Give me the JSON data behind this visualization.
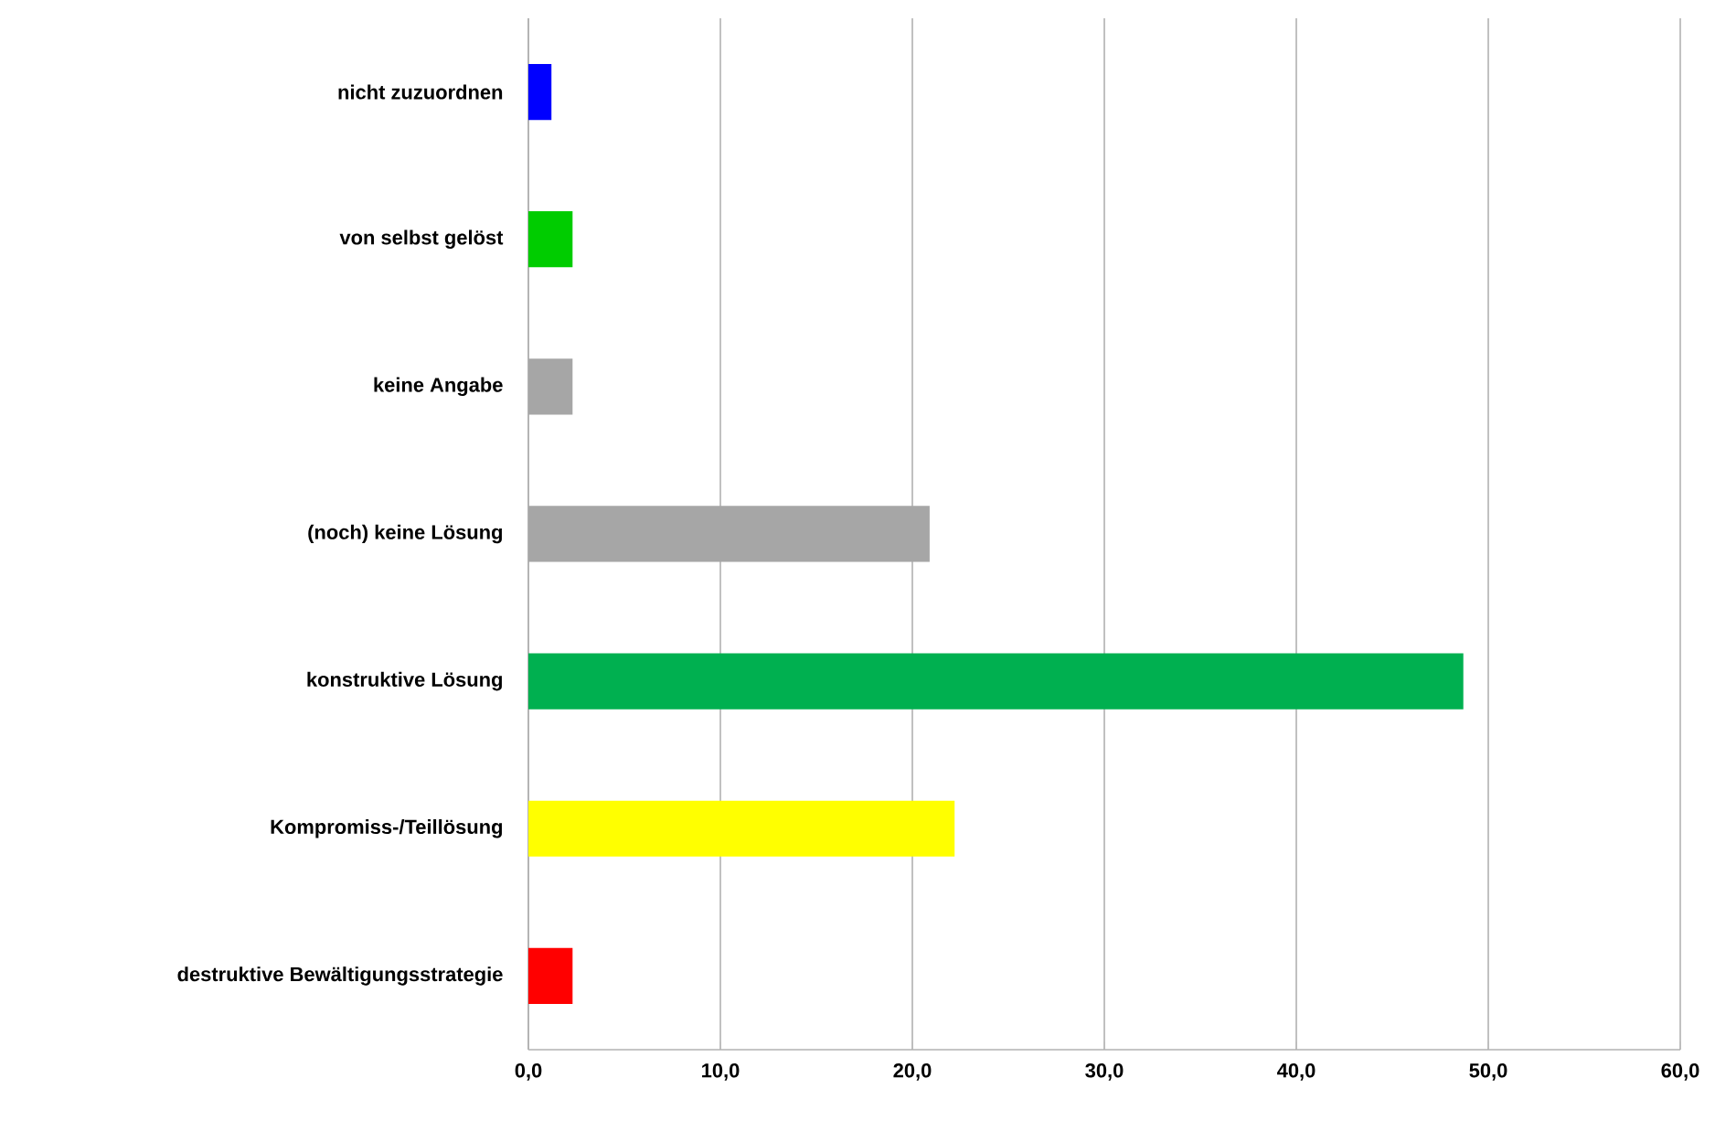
{
  "chart_data": {
    "type": "bar",
    "orientation": "horizontal",
    "categories": [
      "nicht zuzuordnen",
      "von selbst gelöst",
      "keine Angabe",
      "(noch) keine Lösung",
      "konstruktive Lösung",
      "Kompromiss-/Teillösung",
      "destruktive Bewältigungsstrategie"
    ],
    "values": [
      1.2,
      2.3,
      2.3,
      20.9,
      48.7,
      22.2,
      2.3
    ],
    "colors": [
      "#0000ff",
      "#00cc00",
      "#a6a6a6",
      "#a6a6a6",
      "#00b050",
      "#ffff00",
      "#ff0000"
    ],
    "xlim": [
      0,
      60
    ],
    "xticks": [
      {
        "value": 0,
        "label": "0,0"
      },
      {
        "value": 10,
        "label": "10,0"
      },
      {
        "value": 20,
        "label": "20,0"
      },
      {
        "value": 30,
        "label": "30,0"
      },
      {
        "value": 40,
        "label": "40,0"
      },
      {
        "value": 50,
        "label": "50,0"
      },
      {
        "value": 60,
        "label": "60,0"
      }
    ],
    "grid": "x"
  }
}
